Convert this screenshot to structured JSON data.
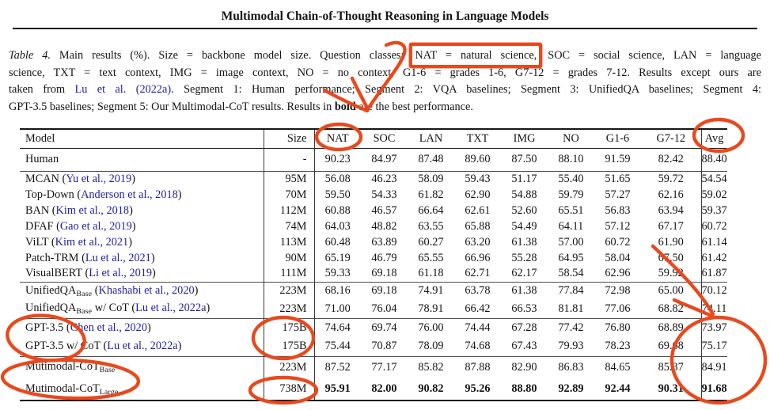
{
  "page": {
    "title": "Multimodal Chain-of-Thought Reasoning in Language Models"
  },
  "colors": {
    "citation_blue": "#1e1fa6",
    "annotation_red": "#e8491d",
    "text": "#141414"
  },
  "caption": {
    "lines": [
      [
        {
          "t": "Table 4.",
          "s": "italic"
        },
        {
          "t": " Main results (%). Size = backbone model size. Question classes: ",
          "s": ""
        },
        {
          "t": "NAT = natural science,",
          "s": "boxed"
        },
        {
          "t": " SOC = social science, LAN = language",
          "s": ""
        }
      ],
      [
        {
          "t": "science, TXT = text context, IMG = image context, NO = no context, G1-6 = grades 1-6, G7-12 = grades 7-12. Results except ours are",
          "s": ""
        }
      ],
      [
        {
          "t": "taken from ",
          "s": ""
        },
        {
          "t": "Lu et al. (2022a)",
          "s": "link"
        },
        {
          "t": ". Segment 1: Human performance; Segment 2: VQA baselines; Segment 3: UnifiedQA baselines; Segment 4:",
          "s": ""
        }
      ],
      [
        {
          "t": "GPT-3.5 baselines; Segment 5: Our Multimodal-CoT results. Results in ",
          "s": ""
        },
        {
          "t": "bold",
          "s": "bold"
        },
        {
          "t": " are the best performance.",
          "s": ""
        }
      ]
    ]
  },
  "table": {
    "headers": {
      "model": "Model",
      "size": "Size",
      "cols": [
        "NAT",
        "SOC",
        "LAN",
        "TXT",
        "IMG",
        "NO",
        "G1-6",
        "G7-12"
      ],
      "avg": "Avg"
    },
    "rows": [
      {
        "seg": 1,
        "model": {
          "pre": "Human",
          "sub": "",
          "mid": "",
          "cite": "",
          "post": ""
        },
        "size": "-",
        "vals": [
          "90.23",
          "84.97",
          "87.48",
          "89.60",
          "87.50",
          "88.10",
          "91.59",
          "82.42"
        ],
        "avg": "88.40",
        "bold": false
      },
      {
        "seg": 2,
        "model": {
          "pre": "MCAN (",
          "sub": "",
          "mid": "",
          "cite": "Yu et al., 2019",
          "post": ")"
        },
        "size": "95M",
        "vals": [
          "56.08",
          "46.23",
          "58.09",
          "59.43",
          "51.17",
          "55.40",
          "51.65",
          "59.72"
        ],
        "avg": "54.54",
        "bold": false
      },
      {
        "seg": 2,
        "model": {
          "pre": "Top-Down (",
          "sub": "",
          "mid": "",
          "cite": "Anderson et al., 2018",
          "post": ")"
        },
        "size": "70M",
        "vals": [
          "59.50",
          "54.33",
          "61.82",
          "62.90",
          "54.88",
          "59.79",
          "57.27",
          "62.16"
        ],
        "avg": "59.02",
        "bold": false
      },
      {
        "seg": 2,
        "model": {
          "pre": "BAN (",
          "sub": "",
          "mid": "",
          "cite": "Kim et al., 2018",
          "post": ")"
        },
        "size": "112M",
        "vals": [
          "60.88",
          "46.57",
          "66.64",
          "62.61",
          "52.60",
          "65.51",
          "56.83",
          "63.94"
        ],
        "avg": "59.37",
        "bold": false
      },
      {
        "seg": 2,
        "model": {
          "pre": "DFAF (",
          "sub": "",
          "mid": "",
          "cite": "Gao et al., 2019",
          "post": ")"
        },
        "size": "74M",
        "vals": [
          "64.03",
          "48.82",
          "63.55",
          "65.88",
          "54.49",
          "64.11",
          "57.12",
          "67.17"
        ],
        "avg": "60.72",
        "bold": false
      },
      {
        "seg": 2,
        "model": {
          "pre": "ViLT (",
          "sub": "",
          "mid": "",
          "cite": "Kim et al., 2021",
          "post": ")"
        },
        "size": "113M",
        "vals": [
          "60.48",
          "63.89",
          "60.27",
          "63.20",
          "61.38",
          "57.00",
          "60.72",
          "61.90"
        ],
        "avg": "61.14",
        "bold": false
      },
      {
        "seg": 2,
        "model": {
          "pre": "Patch-TRM (",
          "sub": "",
          "mid": "",
          "cite": "Lu et al., 2021",
          "post": ")"
        },
        "size": "90M",
        "vals": [
          "65.19",
          "46.79",
          "65.55",
          "66.96",
          "55.28",
          "64.95",
          "58.04",
          "67.50"
        ],
        "avg": "61.42",
        "bold": false
      },
      {
        "seg": 2,
        "model": {
          "pre": "VisualBERT (",
          "sub": "",
          "mid": "",
          "cite": "Li et al., 2019",
          "post": ")"
        },
        "size": "111M",
        "vals": [
          "59.33",
          "69.18",
          "61.18",
          "62.71",
          "62.17",
          "58.54",
          "62.96",
          "59.92"
        ],
        "avg": "61.87",
        "bold": false
      },
      {
        "seg": 3,
        "model": {
          "pre": "UnifiedQA",
          "sub": "Base",
          "mid": " (",
          "cite": "Khashabi et al., 2020",
          "post": ")"
        },
        "size": "223M",
        "vals": [
          "68.16",
          "69.18",
          "74.91",
          "63.78",
          "61.38",
          "77.84",
          "72.98",
          "65.00"
        ],
        "avg": "70.12",
        "bold": false
      },
      {
        "seg": 3,
        "model": {
          "pre": "UnifiedQA",
          "sub": "Base",
          "mid": " w/ CoT (",
          "cite": "Lu et al., 2022a",
          "post": ")"
        },
        "size": "223M",
        "vals": [
          "71.00",
          "76.04",
          "78.91",
          "66.42",
          "66.53",
          "81.81",
          "77.06",
          "68.82"
        ],
        "avg": "74.11",
        "bold": false
      },
      {
        "seg": 4,
        "model": {
          "pre": "GPT-3.5",
          "sub": "",
          "mid": " (",
          "cite": "Chen et al., 2020",
          "post": ")"
        },
        "size": "175B",
        "vals": [
          "74.64",
          "69.74",
          "76.00",
          "74.44",
          "67.28",
          "77.42",
          "76.80",
          "68.89"
        ],
        "avg": "73.97",
        "bold": false
      },
      {
        "seg": 4,
        "model": {
          "pre": "GPT-3.5",
          "sub": "",
          "mid": " w/ CoT (",
          "cite": "Lu et al., 2022a",
          "post": ")"
        },
        "size": "175B",
        "vals": [
          "75.44",
          "70.87",
          "78.09",
          "74.68",
          "67.43",
          "79.93",
          "78.23",
          "69.68"
        ],
        "avg": "75.17",
        "bold": false
      },
      {
        "seg": 5,
        "model": {
          "pre": "Mutimodal-CoT",
          "sub": "Base",
          "mid": "",
          "cite": "",
          "post": ""
        },
        "size": "223M",
        "vals": [
          "87.52",
          "77.17",
          "85.82",
          "87.88",
          "82.90",
          "86.83",
          "84.65",
          "85.37"
        ],
        "avg": "84.91",
        "bold": false
      },
      {
        "seg": 5,
        "model": {
          "pre": "Mutimodal-CoT",
          "sub": "Large",
          "mid": "",
          "cite": "",
          "post": ""
        },
        "size": "738M",
        "vals": [
          "95.91",
          "82.00",
          "90.82",
          "95.26",
          "88.80",
          "92.89",
          "92.44",
          "90.31"
        ],
        "avg": "91.68",
        "bold": true
      }
    ]
  },
  "annotations": {
    "color": "#e8491d",
    "items": [
      "box around 'NAT = natural science' in caption",
      "curved arrow from caption box to NAT column header",
      "ellipse around NAT column header",
      "ellipse around Avg column header",
      "curved arrow pointing into Avg results column",
      "ellipse around GPT-3.5 model names",
      "ellipse around the two 175B sizes",
      "ellipse around Mutimodal-CoT model names",
      "ellipse around 738M size",
      "large ellipse around Avg values of GPT-3.5 and Multimodal-CoT rows"
    ]
  }
}
